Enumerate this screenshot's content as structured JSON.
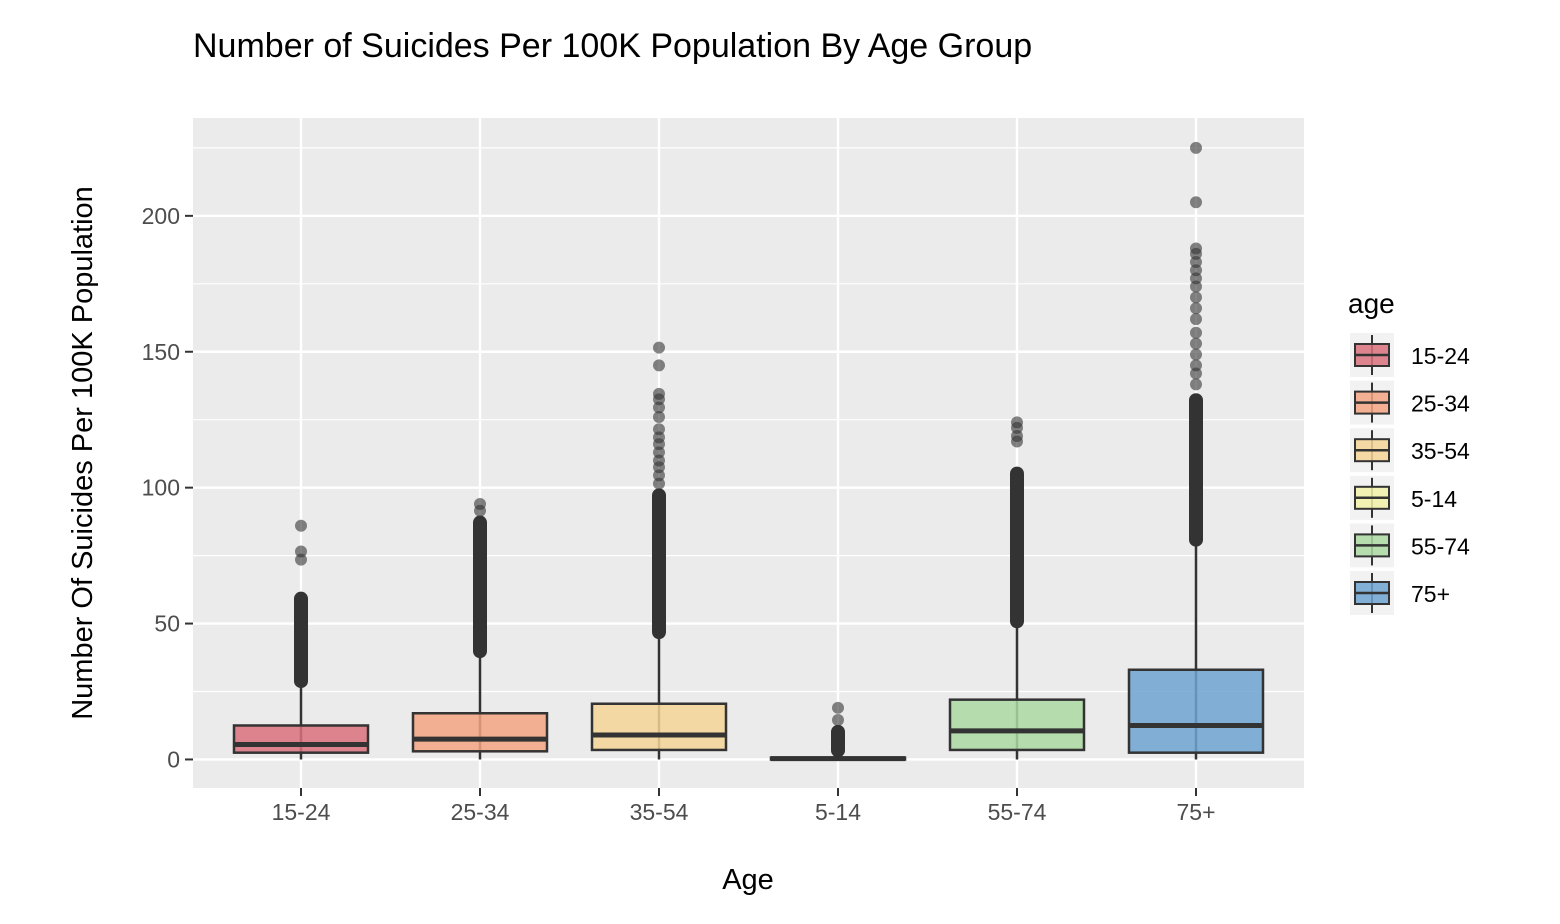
{
  "chart_data": {
    "type": "box",
    "title": "Number of Suicides Per 100K Population By Age Group",
    "xlabel": "Age",
    "ylabel": "Number Of Suicides Per 100K Population",
    "ylim": [
      -10.5,
      236
    ],
    "yticks": [
      0,
      50,
      100,
      150,
      200
    ],
    "grid": true,
    "legend": {
      "title": "age",
      "position": "right"
    },
    "categories": [
      "15-24",
      "25-34",
      "35-54",
      "5-14",
      "55-74",
      "75+"
    ],
    "colors": [
      "#d9717d",
      "#f4a582",
      "#f6d596",
      "#f1f1a9",
      "#abd9a1",
      "#6ea3d1"
    ],
    "boxes": [
      {
        "label": "15-24",
        "q1": 2.5,
        "median": 5.5,
        "q3": 12.5,
        "whisker_low": 0,
        "whisker_high": 27,
        "outlier_min": 27,
        "outlier_max": 61,
        "extra_outliers": [
          73.5,
          76.5,
          86
        ]
      },
      {
        "label": "25-34",
        "q1": 3,
        "median": 7.5,
        "q3": 17,
        "whisker_low": 0,
        "whisker_high": 38,
        "outlier_min": 38,
        "outlier_max": 89,
        "extra_outliers": [
          91.5,
          94
        ]
      },
      {
        "label": "35-54",
        "q1": 3.5,
        "median": 9,
        "q3": 20.5,
        "whisker_low": 0,
        "whisker_high": 45,
        "outlier_min": 45,
        "outlier_max": 99,
        "extra_outliers": [
          101.5,
          104.5,
          107.5,
          110,
          113,
          116,
          118.5,
          121.5,
          126,
          129.5,
          132.5,
          134.5,
          145,
          151.5
        ]
      },
      {
        "label": "5-14",
        "q1": 0,
        "median": 0.3,
        "q3": 0.7,
        "whisker_low": 0,
        "whisker_high": 1.5,
        "outlier_min": 1.5,
        "outlier_max": 12,
        "extra_outliers": [
          14.5,
          19
        ]
      },
      {
        "label": "55-74",
        "q1": 3.5,
        "median": 10.5,
        "q3": 22,
        "whisker_low": 0,
        "whisker_high": 49,
        "outlier_min": 49,
        "outlier_max": 107,
        "extra_outliers": [
          117,
          119,
          122,
          124
        ]
      },
      {
        "label": "75+",
        "q1": 2.5,
        "median": 12.5,
        "q3": 33,
        "whisker_low": 0,
        "whisker_high": 79,
        "outlier_min": 79,
        "outlier_max": 134,
        "extra_outliers": [
          138,
          142,
          145,
          149,
          153,
          157,
          162,
          166,
          170,
          174,
          177,
          180,
          183,
          186,
          188,
          205,
          225
        ]
      }
    ]
  }
}
